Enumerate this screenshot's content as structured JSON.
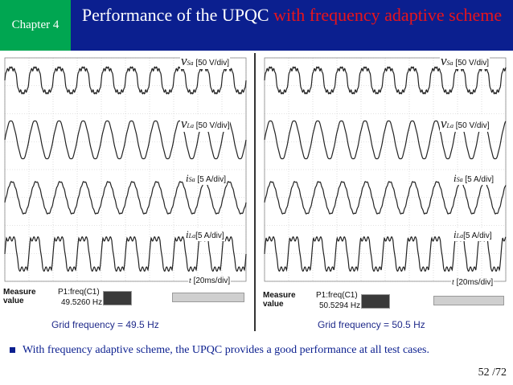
{
  "header": {
    "chapter": "Chapter 4",
    "title_main": "Performance of the UPQC ",
    "title_accent": "with frequency adaptive scheme"
  },
  "panels": [
    {
      "signals": [
        {
          "symbol": "v",
          "sub": "Sa",
          "scale": "[50 V/div]"
        },
        {
          "symbol": "v",
          "sub": "La",
          "scale": "[50 V/div]"
        },
        {
          "symbol": "i",
          "sub": "Sa",
          "scale": "[5 A/div]"
        },
        {
          "symbol": "i",
          "sub": "La",
          "scale": "[5 A/div]"
        }
      ],
      "time_symbol": "t",
      "time_scale": "[20ms/div]",
      "measure_label": "Measure",
      "value_label": "value",
      "freq_name": "P1:freq(C1)",
      "freq_value": "49.5260 Hz",
      "caption": "Grid frequency = 49.5 Hz"
    },
    {
      "signals": [
        {
          "symbol": "v",
          "sub": "Sa",
          "scale": "[50 V/div]"
        },
        {
          "symbol": "v",
          "sub": "La",
          "scale": "[50 V/div]"
        },
        {
          "symbol": "i",
          "sub": "Sa",
          "scale": "[5 A/div]"
        },
        {
          "symbol": "i",
          "sub": "La",
          "scale": "[5 A/div]"
        }
      ],
      "time_symbol": "t",
      "time_scale": "[20ms/div]",
      "measure_label": "Measure",
      "value_label": "value",
      "freq_name": "P1:freq(C1)",
      "freq_value": "50.5294 Hz",
      "caption": "Grid frequency = 50.5 Hz"
    }
  ],
  "note": "With frequency adaptive scheme, the UPQC provides a good performance at all test cases.",
  "page_number": "52 /72",
  "colors": {
    "chapter_bg": "#00a651",
    "title_bg": "#0b1f8f",
    "title_accent": "#e8141b",
    "trace": "#222222",
    "caption": "#1f2a8a"
  }
}
